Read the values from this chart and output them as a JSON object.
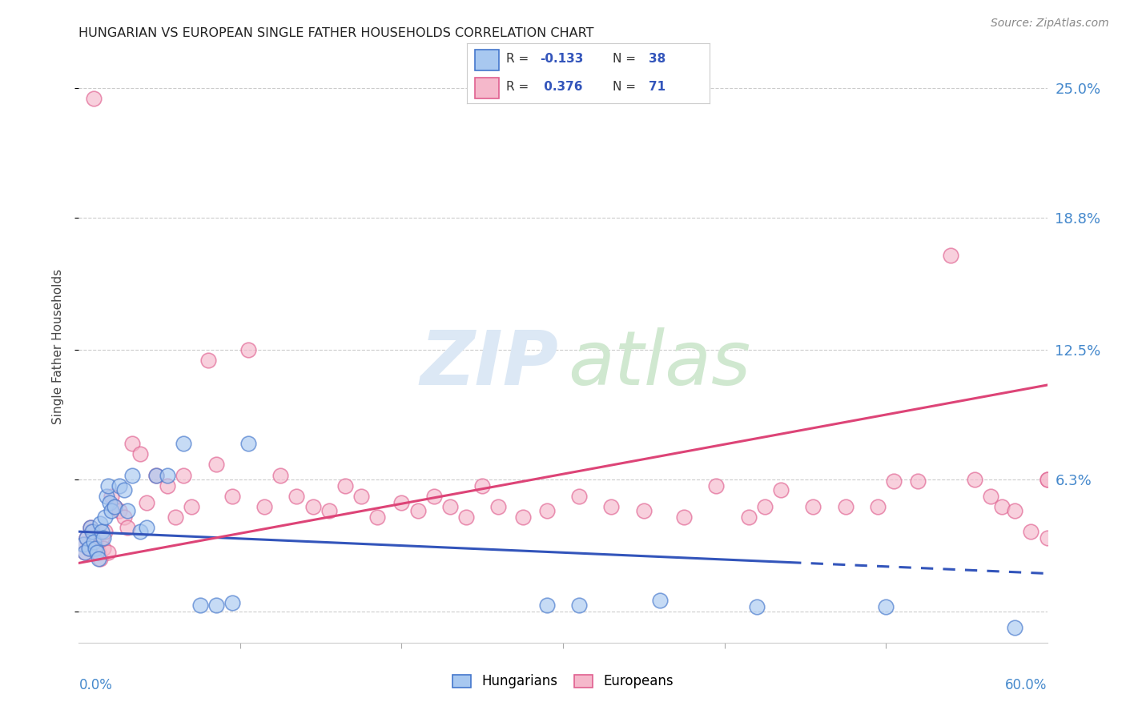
{
  "title": "HUNGARIAN VS EUROPEAN SINGLE FATHER HOUSEHOLDS CORRELATION CHART",
  "source": "Source: ZipAtlas.com",
  "ylabel": "Single Father Households",
  "yticks": [
    0.0,
    0.063,
    0.125,
    0.188,
    0.25
  ],
  "ytick_labels": [
    "",
    "6.3%",
    "12.5%",
    "18.8%",
    "25.0%"
  ],
  "xlim": [
    0.0,
    0.6
  ],
  "ylim": [
    -0.015,
    0.268
  ],
  "hungarian_color": "#a8c8f0",
  "european_color": "#f5b8cb",
  "hungarian_edge_color": "#4477cc",
  "european_edge_color": "#e06090",
  "hungarian_line_color": "#3355bb",
  "european_line_color": "#dd4477",
  "hun_line_start_x": 0.0,
  "hun_line_end_x": 0.6,
  "hun_line_solid_end": 0.44,
  "hun_line_start_y": 0.038,
  "hun_line_end_y": 0.018,
  "eur_line_start_x": 0.0,
  "eur_line_end_x": 0.6,
  "eur_line_start_y": 0.023,
  "eur_line_end_y": 0.108,
  "hun_x": [
    0.003,
    0.004,
    0.005,
    0.006,
    0.007,
    0.008,
    0.009,
    0.01,
    0.011,
    0.012,
    0.013,
    0.014,
    0.015,
    0.016,
    0.017,
    0.018,
    0.019,
    0.02,
    0.022,
    0.025,
    0.028,
    0.03,
    0.033,
    0.038,
    0.042,
    0.048,
    0.055,
    0.065,
    0.075,
    0.085,
    0.095,
    0.105,
    0.29,
    0.31,
    0.36,
    0.42,
    0.5,
    0.58
  ],
  "hun_y": [
    0.032,
    0.028,
    0.035,
    0.03,
    0.04,
    0.038,
    0.033,
    0.03,
    0.028,
    0.025,
    0.042,
    0.038,
    0.035,
    0.045,
    0.055,
    0.06,
    0.052,
    0.048,
    0.05,
    0.06,
    0.058,
    0.048,
    0.065,
    0.038,
    0.04,
    0.065,
    0.065,
    0.08,
    0.003,
    0.003,
    0.004,
    0.08,
    0.003,
    0.003,
    0.005,
    0.002,
    0.002,
    -0.008
  ],
  "eur_x": [
    0.003,
    0.004,
    0.005,
    0.006,
    0.007,
    0.008,
    0.009,
    0.01,
    0.011,
    0.012,
    0.013,
    0.014,
    0.015,
    0.016,
    0.018,
    0.02,
    0.022,
    0.025,
    0.028,
    0.03,
    0.033,
    0.038,
    0.042,
    0.048,
    0.055,
    0.06,
    0.065,
    0.07,
    0.08,
    0.085,
    0.095,
    0.105,
    0.115,
    0.125,
    0.135,
    0.145,
    0.155,
    0.165,
    0.175,
    0.185,
    0.2,
    0.21,
    0.22,
    0.23,
    0.24,
    0.25,
    0.26,
    0.275,
    0.29,
    0.31,
    0.33,
    0.35,
    0.375,
    0.395,
    0.415,
    0.425,
    0.435,
    0.455,
    0.475,
    0.495,
    0.505,
    0.52,
    0.54,
    0.555,
    0.565,
    0.572,
    0.58,
    0.59,
    0.6,
    0.6,
    0.6
  ],
  "eur_y": [
    0.032,
    0.028,
    0.035,
    0.03,
    0.04,
    0.038,
    0.245,
    0.033,
    0.03,
    0.028,
    0.025,
    0.035,
    0.03,
    0.038,
    0.028,
    0.055,
    0.05,
    0.048,
    0.045,
    0.04,
    0.08,
    0.075,
    0.052,
    0.065,
    0.06,
    0.045,
    0.065,
    0.05,
    0.12,
    0.07,
    0.055,
    0.125,
    0.05,
    0.065,
    0.055,
    0.05,
    0.048,
    0.06,
    0.055,
    0.045,
    0.052,
    0.048,
    0.055,
    0.05,
    0.045,
    0.06,
    0.05,
    0.045,
    0.048,
    0.055,
    0.05,
    0.048,
    0.045,
    0.06,
    0.045,
    0.05,
    0.058,
    0.05,
    0.05,
    0.05,
    0.062,
    0.062,
    0.17,
    0.063,
    0.055,
    0.05,
    0.048,
    0.038,
    0.035,
    0.063,
    0.063
  ],
  "legend_items": [
    {
      "label": "R = -0.133  N = 38",
      "r_val": "-0.133",
      "n_val": "38",
      "color": "#a8c8f0",
      "edge": "#4477cc"
    },
    {
      "label": "R =  0.376  N = 71",
      "r_val": " 0.376",
      "n_val": "71",
      "color": "#f5b8cb",
      "edge": "#e06090"
    }
  ],
  "bottom_legend": [
    {
      "label": "Hungarians",
      "color": "#a8c8f0",
      "edge": "#4477cc"
    },
    {
      "label": "Europeans",
      "color": "#f5b8cb",
      "edge": "#e06090"
    }
  ],
  "watermark_zip_color": "#dce8f5",
  "watermark_atlas_color": "#d0e8d0",
  "grid_color": "#cccccc",
  "title_color": "#222222",
  "source_color": "#888888",
  "ylabel_color": "#444444",
  "tick_label_color": "#4488cc",
  "marker_size": 180,
  "marker_alpha": 0.65,
  "marker_lw": 1.2,
  "line_lw": 2.2
}
